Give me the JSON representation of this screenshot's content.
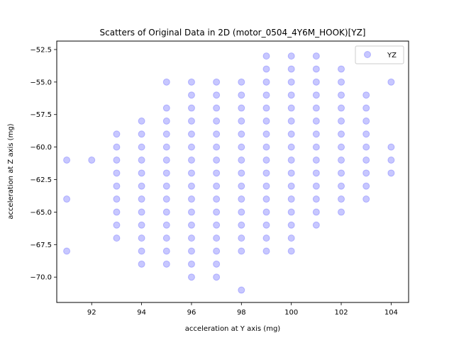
{
  "chart_data": {
    "type": "scatter",
    "title": "Scatters of Original Data in 2D (motor_0504_4Y6M_HOOK)[YZ]",
    "xlabel": "acceleration at Y axis (mg)",
    "ylabel": "acceleration at Z axis (mg)",
    "xlim": [
      90.6,
      104.7
    ],
    "ylim": [
      -71.95,
      -51.85
    ],
    "xticks": [
      92,
      94,
      96,
      98,
      100,
      102,
      104
    ],
    "yticks": [
      -52.5,
      -55.0,
      -57.5,
      -60.0,
      -62.5,
      -65.0,
      -67.5,
      -70.0
    ],
    "xtick_labels": [
      "92",
      "94",
      "96",
      "98",
      "100",
      "102",
      "104"
    ],
    "ytick_labels": [
      "−52.5",
      "−55.0",
      "−57.5",
      "−60.0",
      "−62.5",
      "−65.0",
      "−67.5",
      "−70.0"
    ],
    "grid": false,
    "legend_position": "top-right",
    "series": [
      {
        "name": "YZ",
        "color": "#0000ff",
        "alpha": 0.22,
        "points": [
          [
            91,
            -61
          ],
          [
            91,
            -64
          ],
          [
            91,
            -68
          ],
          [
            92,
            -61
          ],
          [
            93,
            -59
          ],
          [
            93,
            -60
          ],
          [
            93,
            -61
          ],
          [
            93,
            -62
          ],
          [
            93,
            -63
          ],
          [
            93,
            -64
          ],
          [
            93,
            -65
          ],
          [
            93,
            -66
          ],
          [
            93,
            -67
          ],
          [
            94,
            -58
          ],
          [
            94,
            -59
          ],
          [
            94,
            -60
          ],
          [
            94,
            -61
          ],
          [
            94,
            -62
          ],
          [
            94,
            -63
          ],
          [
            94,
            -64
          ],
          [
            94,
            -65
          ],
          [
            94,
            -66
          ],
          [
            94,
            -67
          ],
          [
            94,
            -68
          ],
          [
            94,
            -69
          ],
          [
            95,
            -55
          ],
          [
            95,
            -57
          ],
          [
            95,
            -58
          ],
          [
            95,
            -59
          ],
          [
            95,
            -60
          ],
          [
            95,
            -61
          ],
          [
            95,
            -62
          ],
          [
            95,
            -63
          ],
          [
            95,
            -64
          ],
          [
            95,
            -65
          ],
          [
            95,
            -66
          ],
          [
            95,
            -67
          ],
          [
            95,
            -68
          ],
          [
            95,
            -69
          ],
          [
            96,
            -55
          ],
          [
            96,
            -56
          ],
          [
            96,
            -57
          ],
          [
            96,
            -58
          ],
          [
            96,
            -59
          ],
          [
            96,
            -60
          ],
          [
            96,
            -61
          ],
          [
            96,
            -62
          ],
          [
            96,
            -63
          ],
          [
            96,
            -64
          ],
          [
            96,
            -65
          ],
          [
            96,
            -66
          ],
          [
            96,
            -67
          ],
          [
            96,
            -68
          ],
          [
            96,
            -69
          ],
          [
            96,
            -70
          ],
          [
            97,
            -55
          ],
          [
            97,
            -56
          ],
          [
            97,
            -57
          ],
          [
            97,
            -58
          ],
          [
            97,
            -59
          ],
          [
            97,
            -60
          ],
          [
            97,
            -61
          ],
          [
            97,
            -62
          ],
          [
            97,
            -63
          ],
          [
            97,
            -64
          ],
          [
            97,
            -65
          ],
          [
            97,
            -66
          ],
          [
            97,
            -67
          ],
          [
            97,
            -68
          ],
          [
            97,
            -69
          ],
          [
            97,
            -70
          ],
          [
            98,
            -55
          ],
          [
            98,
            -56
          ],
          [
            98,
            -57
          ],
          [
            98,
            -58
          ],
          [
            98,
            -59
          ],
          [
            98,
            -60
          ],
          [
            98,
            -61
          ],
          [
            98,
            -62
          ],
          [
            98,
            -63
          ],
          [
            98,
            -64
          ],
          [
            98,
            -65
          ],
          [
            98,
            -66
          ],
          [
            98,
            -67
          ],
          [
            98,
            -68
          ],
          [
            98,
            -71
          ],
          [
            99,
            -53
          ],
          [
            99,
            -54
          ],
          [
            99,
            -55
          ],
          [
            99,
            -56
          ],
          [
            99,
            -57
          ],
          [
            99,
            -58
          ],
          [
            99,
            -59
          ],
          [
            99,
            -60
          ],
          [
            99,
            -61
          ],
          [
            99,
            -62
          ],
          [
            99,
            -63
          ],
          [
            99,
            -64
          ],
          [
            99,
            -65
          ],
          [
            99,
            -66
          ],
          [
            99,
            -67
          ],
          [
            99,
            -68
          ],
          [
            100,
            -53
          ],
          [
            100,
            -54
          ],
          [
            100,
            -55
          ],
          [
            100,
            -56
          ],
          [
            100,
            -57
          ],
          [
            100,
            -58
          ],
          [
            100,
            -59
          ],
          [
            100,
            -60
          ],
          [
            100,
            -61
          ],
          [
            100,
            -62
          ],
          [
            100,
            -63
          ],
          [
            100,
            -64
          ],
          [
            100,
            -65
          ],
          [
            100,
            -66
          ],
          [
            100,
            -67
          ],
          [
            100,
            -68
          ],
          [
            101,
            -53
          ],
          [
            101,
            -54
          ],
          [
            101,
            -55
          ],
          [
            101,
            -56
          ],
          [
            101,
            -57
          ],
          [
            101,
            -58
          ],
          [
            101,
            -59
          ],
          [
            101,
            -60
          ],
          [
            101,
            -61
          ],
          [
            101,
            -62
          ],
          [
            101,
            -63
          ],
          [
            101,
            -64
          ],
          [
            101,
            -65
          ],
          [
            101,
            -66
          ],
          [
            102,
            -54
          ],
          [
            102,
            -55
          ],
          [
            102,
            -56
          ],
          [
            102,
            -57
          ],
          [
            102,
            -58
          ],
          [
            102,
            -59
          ],
          [
            102,
            -60
          ],
          [
            102,
            -61
          ],
          [
            102,
            -62
          ],
          [
            102,
            -63
          ],
          [
            102,
            -64
          ],
          [
            102,
            -65
          ],
          [
            103,
            -56
          ],
          [
            103,
            -57
          ],
          [
            103,
            -58
          ],
          [
            103,
            -59
          ],
          [
            103,
            -60
          ],
          [
            103,
            -61
          ],
          [
            103,
            -62
          ],
          [
            103,
            -63
          ],
          [
            103,
            -64
          ],
          [
            104,
            -55
          ],
          [
            104,
            -60
          ],
          [
            104,
            -61
          ],
          [
            104,
            -62
          ]
        ]
      }
    ]
  }
}
